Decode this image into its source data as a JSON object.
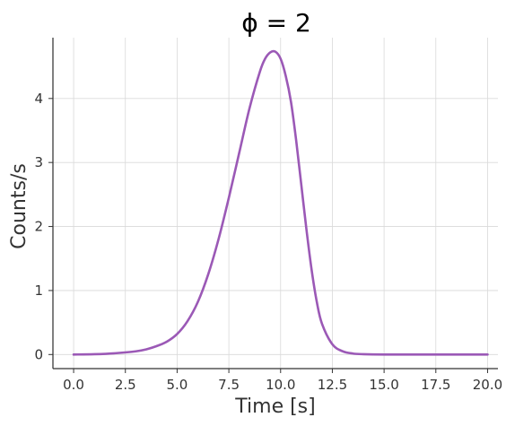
{
  "chart_data": {
    "type": "line",
    "title": "ϕ = 2",
    "xlabel": "Time [s]",
    "ylabel": "Counts/s",
    "xlim": [
      -1.0,
      20.5
    ],
    "ylim": [
      -0.22,
      4.95
    ],
    "grid": true,
    "x_ticks": [
      0.0,
      2.5,
      5.0,
      7.5,
      10.0,
      12.5,
      15.0,
      17.5,
      20.0
    ],
    "x_tick_labels": [
      "0.0",
      "2.5",
      "5.0",
      "7.5",
      "10.0",
      "12.5",
      "15.0",
      "17.5",
      "20.0"
    ],
    "y_ticks": [
      0,
      1,
      2,
      3,
      4
    ],
    "y_tick_labels": [
      "0",
      "1",
      "2",
      "3",
      "4"
    ],
    "series": [
      {
        "color": "#9b59b6",
        "x": [
          0.0,
          1.0,
          2.0,
          3.0,
          3.5,
          4.0,
          4.5,
          5.0,
          5.5,
          6.0,
          6.5,
          7.0,
          7.5,
          8.0,
          8.5,
          9.0,
          9.25,
          9.5,
          9.75,
          10.0,
          10.25,
          10.5,
          10.75,
          11.0,
          11.25,
          11.5,
          11.75,
          12.0,
          12.5,
          13.0,
          13.5,
          14.0,
          15.0,
          17.0,
          20.0
        ],
        "y": [
          0.0,
          0.005,
          0.02,
          0.05,
          0.08,
          0.13,
          0.2,
          0.32,
          0.52,
          0.82,
          1.25,
          1.8,
          2.45,
          3.15,
          3.85,
          4.42,
          4.62,
          4.72,
          4.73,
          4.62,
          4.35,
          3.95,
          3.35,
          2.65,
          1.95,
          1.32,
          0.82,
          0.48,
          0.16,
          0.05,
          0.015,
          0.005,
          0.0,
          0.0,
          0.0
        ]
      }
    ]
  }
}
